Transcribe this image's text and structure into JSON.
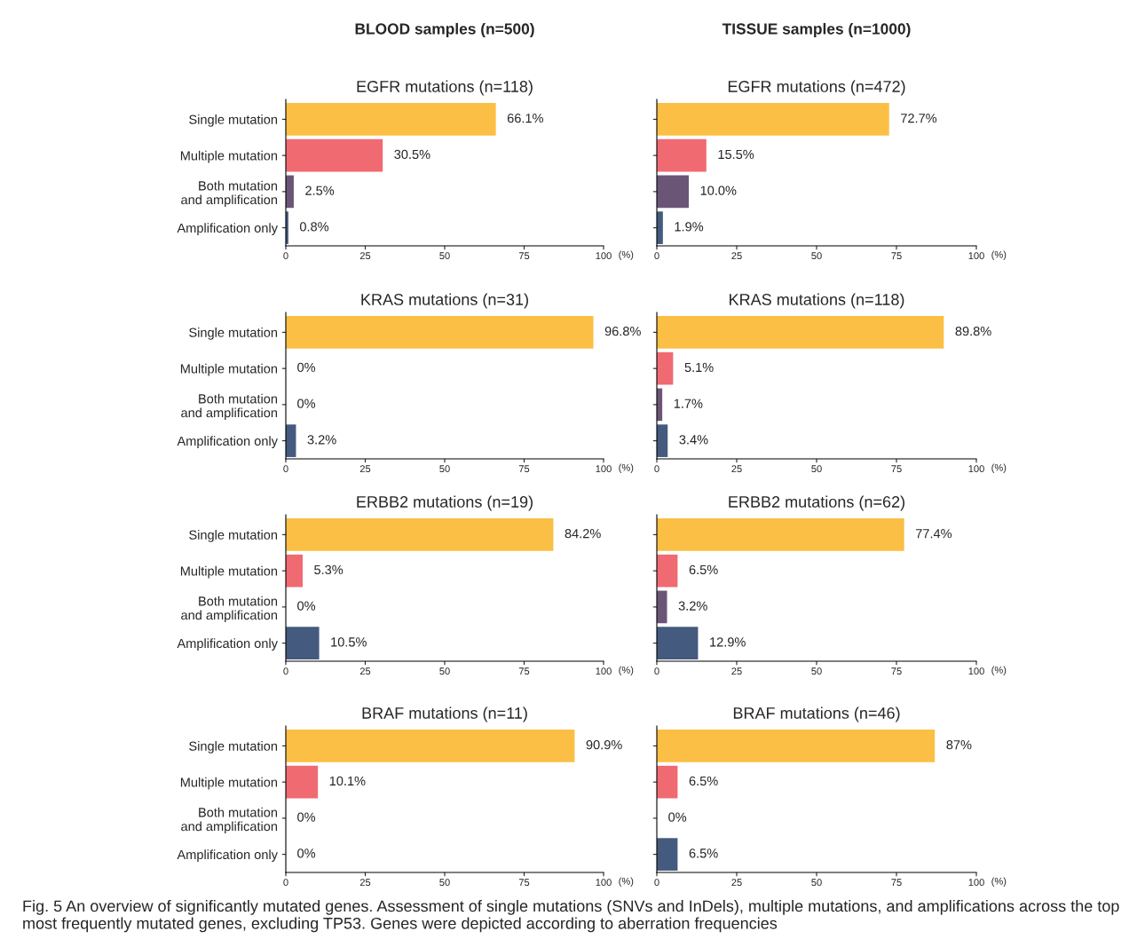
{
  "chart_data": [
    {
      "type": "bar",
      "orientation": "horizontal",
      "subtitle": "BLOOD samples (n=500)",
      "title": "EGFR mutations (n=118)",
      "categories": [
        "Single mutation",
        "Multiple mutation",
        "Both mutation\nand amplification",
        "Amplification only"
      ],
      "values": [
        66.1,
        30.5,
        2.5,
        0.8
      ],
      "value_labels": [
        "66.1%",
        "30.5%",
        "2.5%",
        "0.8%"
      ],
      "colors": [
        "#fbbf45",
        "#f06a72",
        "#6b5577",
        "#445a7e"
      ],
      "xlim": [
        0,
        100
      ],
      "xticks": [
        0,
        25,
        50,
        75,
        100
      ],
      "xlabel": "(%)",
      "grid": false,
      "legend": false,
      "annotations": [
        "Fig. 5 An overview of significantly mutated genes. Assessment of single mutations (SNVs and InDels), multiple mutations, and amplifications across the top most frequently mutated genes, excluding TP53. Genes were depicted according to aberration frequencies"
      ]
    },
    {
      "type": "bar",
      "orientation": "horizontal",
      "subtitle": "TISSUE samples (n=1000)",
      "title": "EGFR mutations (n=472)",
      "categories": [
        null,
        null,
        null,
        null
      ],
      "values": [
        72.7,
        15.5,
        10.0,
        1.9
      ],
      "value_labels": [
        "72.7%",
        "15.5%",
        "10.0%",
        "1.9%"
      ],
      "colors": [
        "#fbbf45",
        "#f06a72",
        "#6b5577",
        "#445a7e"
      ],
      "xlim": [
        0,
        100
      ],
      "xticks": [
        0,
        25,
        50,
        75,
        100
      ],
      "xlabel": "(%)",
      "grid": false,
      "legend": false
    },
    {
      "type": "bar",
      "orientation": "horizontal",
      "title": "KRAS mutations (n=31)",
      "categories": [
        "Single mutation",
        "Multiple mutation",
        "Both mutation\nand amplification",
        "Amplification only"
      ],
      "values": [
        96.8,
        0,
        0,
        3.2
      ],
      "value_labels": [
        "96.8%",
        "0%",
        "0%",
        "3.2%"
      ],
      "colors": [
        "#fbbf45",
        "#f06a72",
        "#6b5577",
        "#445a7e"
      ],
      "xlim": [
        0,
        100
      ],
      "xticks": [
        0,
        25,
        50,
        75,
        100
      ],
      "xlabel": "(%)",
      "grid": false,
      "legend": false
    },
    {
      "type": "bar",
      "orientation": "horizontal",
      "title": "KRAS mutations (n=118)",
      "categories": [
        null,
        null,
        null,
        null
      ],
      "values": [
        89.8,
        5.1,
        1.7,
        3.4
      ],
      "value_labels": [
        "89.8%",
        "5.1%",
        "1.7%",
        "3.4%"
      ],
      "colors": [
        "#fbbf45",
        "#f06a72",
        "#6b5577",
        "#445a7e"
      ],
      "xlim": [
        0,
        100
      ],
      "xticks": [
        0,
        25,
        50,
        75,
        100
      ],
      "xlabel": "(%)",
      "grid": false,
      "legend": false
    },
    {
      "type": "bar",
      "orientation": "horizontal",
      "title": "ERBB2 mutations (n=19)",
      "categories": [
        "Single mutation",
        "Multiple mutation",
        "Both mutation\nand amplification",
        "Amplification only"
      ],
      "values": [
        84.2,
        5.3,
        0,
        10.5
      ],
      "value_labels": [
        "84.2%",
        "5.3%",
        "0%",
        "10.5%"
      ],
      "colors": [
        "#fbbf45",
        "#f06a72",
        "#6b5577",
        "#445a7e"
      ],
      "xlim": [
        0,
        100
      ],
      "xticks": [
        0,
        25,
        50,
        75,
        100
      ],
      "xlabel": "(%)",
      "grid": false,
      "legend": false
    },
    {
      "type": "bar",
      "orientation": "horizontal",
      "title": "ERBB2 mutations (n=62)",
      "categories": [
        null,
        null,
        null,
        null
      ],
      "values": [
        77.4,
        6.5,
        3.2,
        12.9
      ],
      "value_labels": [
        "77.4%",
        "6.5%",
        "3.2%",
        "12.9%"
      ],
      "colors": [
        "#fbbf45",
        "#f06a72",
        "#6b5577",
        "#445a7e"
      ],
      "xlim": [
        0,
        100
      ],
      "xticks": [
        0,
        25,
        50,
        75,
        100
      ],
      "xlabel": "(%)",
      "grid": false,
      "legend": false
    },
    {
      "type": "bar",
      "orientation": "horizontal",
      "title": "BRAF mutations (n=11)",
      "categories": [
        "Single mutation",
        "Multiple mutation",
        "Both mutation\nand amplification",
        "Amplification only"
      ],
      "values": [
        90.9,
        10.1,
        0,
        0
      ],
      "value_labels": [
        "90.9%",
        "10.1%",
        "0%",
        "0%"
      ],
      "colors": [
        "#fbbf45",
        "#f06a72",
        "#6b5577",
        "#445a7e"
      ],
      "xlim": [
        0,
        100
      ],
      "xticks": [
        0,
        25,
        50,
        75,
        100
      ],
      "xlabel": "(%)",
      "grid": false,
      "legend": false
    },
    {
      "type": "bar",
      "orientation": "horizontal",
      "title": "BRAF mutations (n=46)",
      "categories": [
        null,
        null,
        null,
        null
      ],
      "values": [
        87,
        6.5,
        0,
        6.5
      ],
      "value_labels": [
        "87%",
        "6.5%",
        "0%",
        "6.5%"
      ],
      "colors": [
        "#fbbf45",
        "#f06a72",
        "#6b5577",
        "#445a7e"
      ],
      "xlim": [
        0,
        100
      ],
      "xticks": [
        0,
        25,
        50,
        75,
        100
      ],
      "xlabel": "(%)",
      "grid": false,
      "legend": false
    }
  ]
}
